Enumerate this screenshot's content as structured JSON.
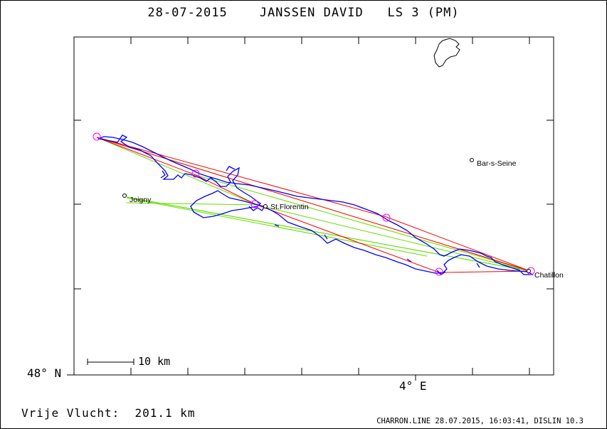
{
  "title": {
    "date": "28-07-2015",
    "pilot": "JANSSEN DAVID",
    "code": "LS 3 (PM)"
  },
  "axes": {
    "lat_label": "48° N",
    "lon_label": "4° E"
  },
  "scale_bar": {
    "label": "10 km"
  },
  "places": [
    {
      "id": "bar-s-seine",
      "label": "Bar-s-Seine"
    },
    {
      "id": "joigny",
      "label": "Joigny"
    },
    {
      "id": "st-florentin",
      "label": "St.Florentin"
    },
    {
      "id": "chatillon",
      "label": "Chatillon"
    }
  ],
  "footer": {
    "distance_label": "Vrije Vlucht:",
    "distance_value": "201.1 km",
    "program_info": "CHARRON.LINE 28.07.2015, 16:03:41, DISLIN 10.3"
  },
  "colors": {
    "track": "#0000ff",
    "declared_task": "#ff0000",
    "optimized_legs": "#66dd00",
    "turnpoint": "#ff00ff",
    "frame": "#000000"
  }
}
